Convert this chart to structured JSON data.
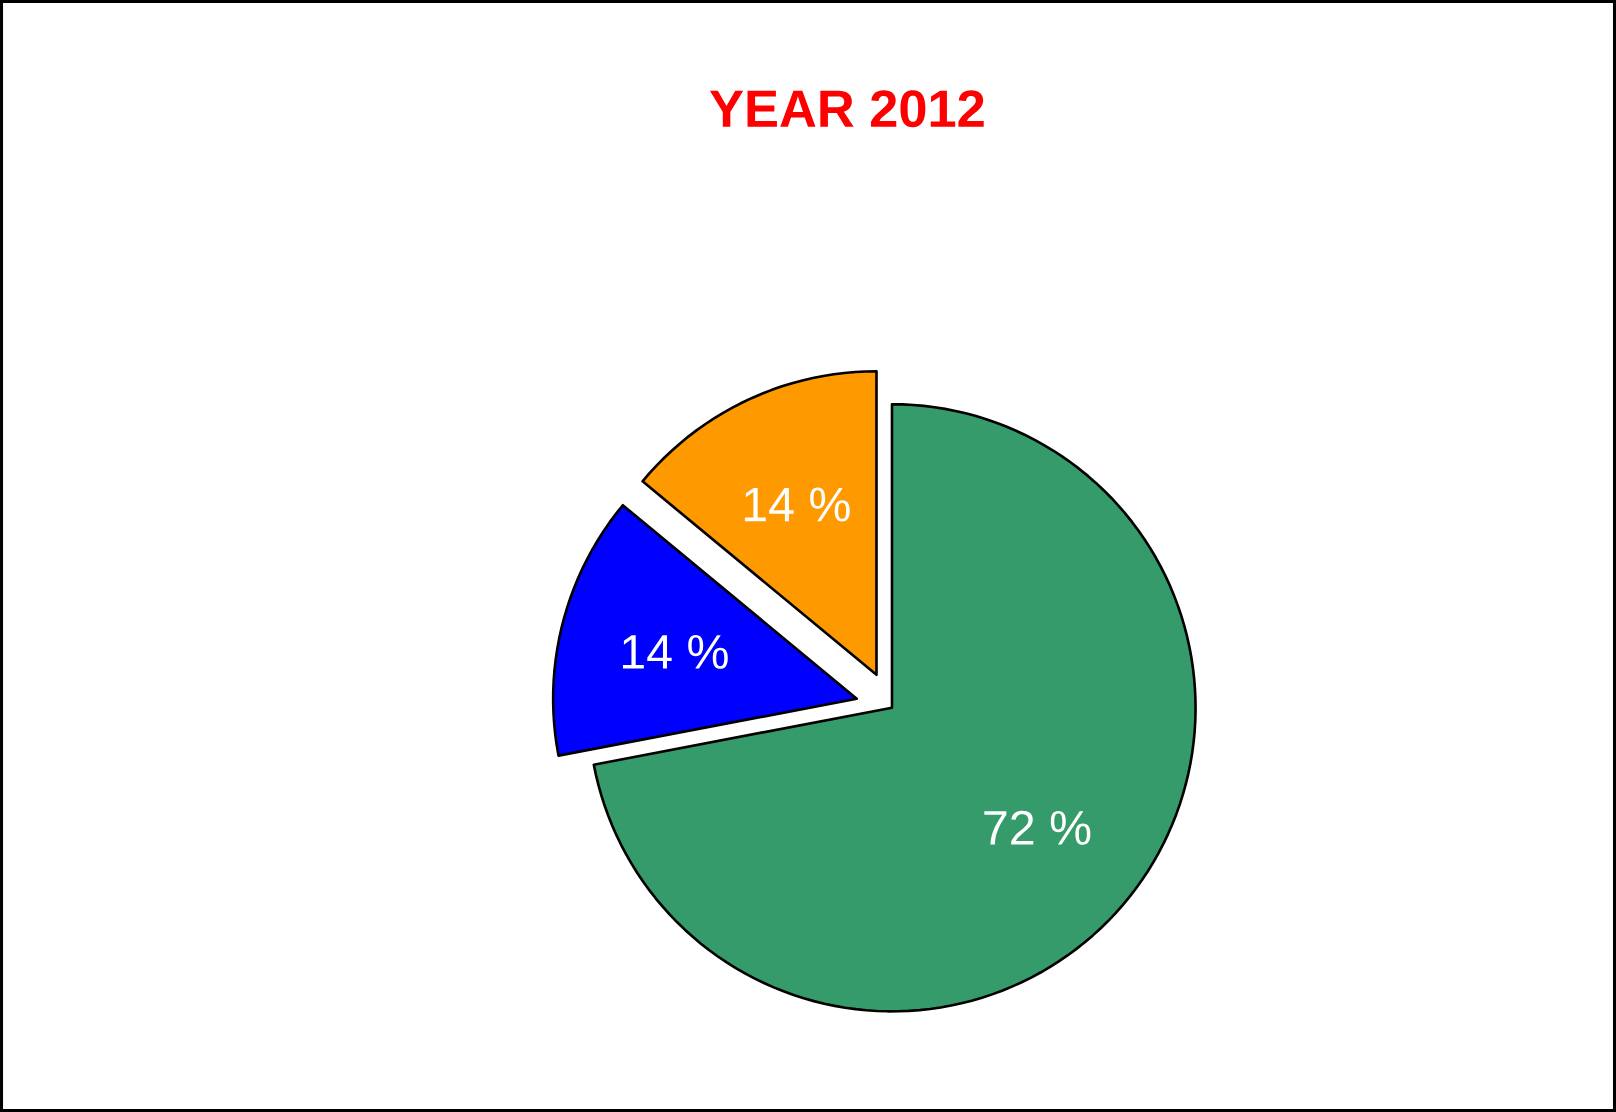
{
  "chart_data": {
    "type": "pie",
    "title": "YEAR  2012",
    "categories": [
      null,
      null,
      null
    ],
    "values": [
      72,
      14,
      14
    ],
    "colors": [
      "#369b6a",
      "#0000ff",
      "#ff9900"
    ],
    "value_labels": [
      "72 %",
      "14 %",
      "14 %"
    ]
  }
}
